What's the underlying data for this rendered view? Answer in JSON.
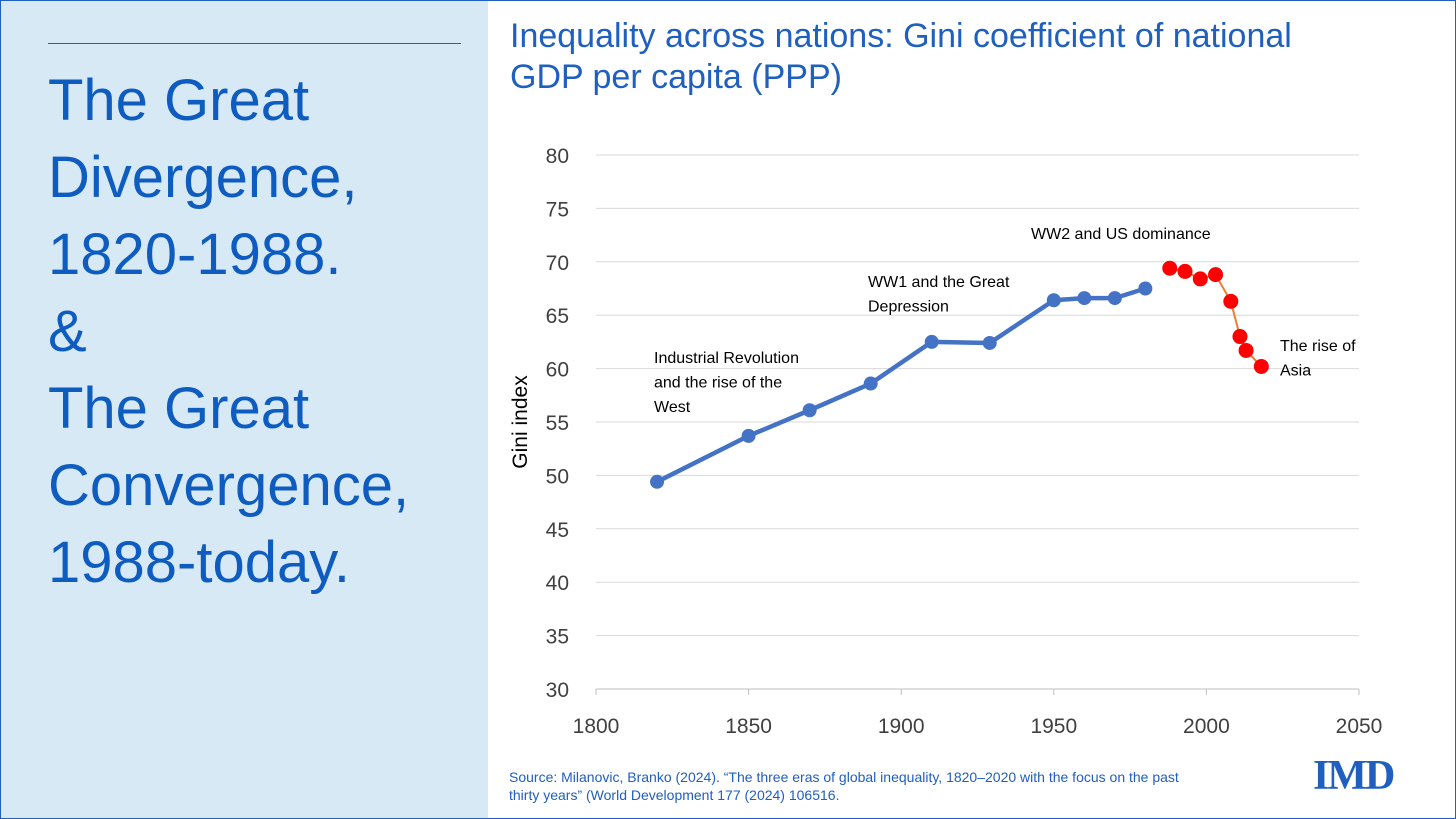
{
  "left": {
    "lines": [
      "The Great",
      "Divergence,",
      "1820-1988.",
      "&",
      "The Great",
      "Convergence,",
      "1988-today."
    ]
  },
  "title_lines": [
    "Inequality across nations: Gini coefficient of national",
    "GDP per capita (PPP)"
  ],
  "source_lines": [
    "Source: Milanovic, Branko (2024). “The three eras of global inequality, 1820–2020 with the focus on the past",
    "thirty years” (World Development 177 (2024) 106516."
  ],
  "logo_text": "IMD",
  "chart_data": {
    "type": "line",
    "title": "Inequality across nations: Gini coefficient of national GDP per capita (PPP)",
    "xlabel": "",
    "ylabel": "Gini index",
    "xlim": [
      1800,
      2050
    ],
    "ylim": [
      30,
      80
    ],
    "xticks": [
      1800,
      1850,
      1900,
      1950,
      2000,
      2050
    ],
    "yticks": [
      30,
      35,
      40,
      45,
      50,
      55,
      60,
      65,
      70,
      75,
      80
    ],
    "grid": true,
    "series": [
      {
        "color": "#4472c4",
        "points": [
          {
            "x": 1820,
            "y": 49.4
          },
          {
            "x": 1850,
            "y": 53.7
          },
          {
            "x": 1870,
            "y": 56.1
          },
          {
            "x": 1890,
            "y": 58.6
          },
          {
            "x": 1910,
            "y": 62.5
          },
          {
            "x": 1929,
            "y": 62.4
          },
          {
            "x": 1950,
            "y": 66.4
          },
          {
            "x": 1960,
            "y": 66.6
          },
          {
            "x": 1970,
            "y": 66.6
          },
          {
            "x": 1980,
            "y": 67.5
          }
        ]
      },
      {
        "color": "#ff0000",
        "line_color": "#ed7d31",
        "points": [
          {
            "x": 1988,
            "y": 69.4
          },
          {
            "x": 1993,
            "y": 69.1
          },
          {
            "x": 1998,
            "y": 68.4
          },
          {
            "x": 2003,
            "y": 68.8
          },
          {
            "x": 2008,
            "y": 66.3
          },
          {
            "x": 2011,
            "y": 63.0
          },
          {
            "x": 2013,
            "y": 61.7
          },
          {
            "x": 2018,
            "y": 60.2
          }
        ]
      }
    ],
    "annotations": [
      {
        "lines": [
          "Industrial Revolution",
          "and the rise of the",
          "West"
        ]
      },
      {
        "lines": [
          "WW1 and the Great",
          "Depression"
        ]
      },
      {
        "lines": [
          "WW2 and US dominance"
        ]
      },
      {
        "lines": [
          "The rise of",
          "Asia"
        ]
      }
    ]
  }
}
